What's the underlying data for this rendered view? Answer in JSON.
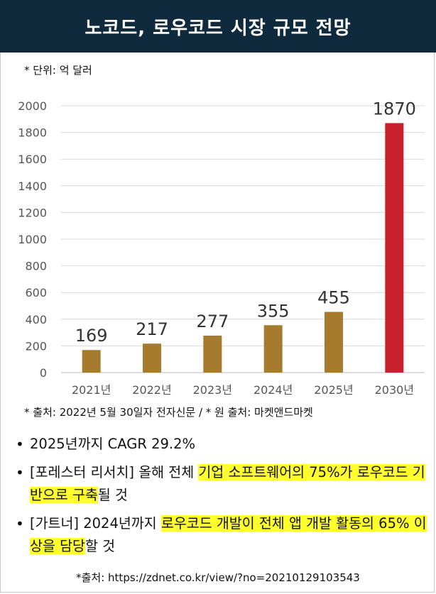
{
  "title": "노코드, 로우코드 시장 규모 전망",
  "unit_note": "* 단위: 억 달러",
  "chart_data": {
    "type": "bar",
    "categories": [
      "2021년",
      "2022년",
      "2023년",
      "2024년",
      "2025년",
      "2030년"
    ],
    "values": [
      169,
      217,
      277,
      355,
      455,
      1870
    ],
    "data_labels": [
      "169",
      "217",
      "277",
      "355",
      "455",
      "1870"
    ],
    "ylim": [
      0,
      2000
    ],
    "yticks": [
      0,
      200,
      400,
      600,
      800,
      1000,
      1200,
      1400,
      1600,
      1800,
      2000
    ],
    "grid": true,
    "colors": {
      "default": "#a67b2e",
      "highlight": "#c8202d"
    },
    "highlight_index": 5
  },
  "source_note": "* 출처: 2022년 5월 30일자 전자신문 / * 원 출처: 마켓앤드마켓",
  "bullets": [
    {
      "parts": [
        {
          "text": "2025년까지 CAGR 29.2%",
          "hl": false
        }
      ]
    },
    {
      "parts": [
        {
          "text": "[포레스터 리서치] 올해 전체 ",
          "hl": false
        },
        {
          "text": "기업 소프트웨어의 75%가 로우코드 기반으로 구축",
          "hl": true
        },
        {
          "text": "될 것",
          "hl": false
        }
      ]
    },
    {
      "parts": [
        {
          "text": "[가트너] 2024년까지 ",
          "hl": false
        },
        {
          "text": "로우코드 개발이 전체 앱 개발 활동의 65% 이상을 담당",
          "hl": true
        },
        {
          "text": "할 것",
          "hl": false
        }
      ]
    }
  ],
  "footer_source": "*출처: https://zdnet.co.kr/view/?no=20210129103543"
}
